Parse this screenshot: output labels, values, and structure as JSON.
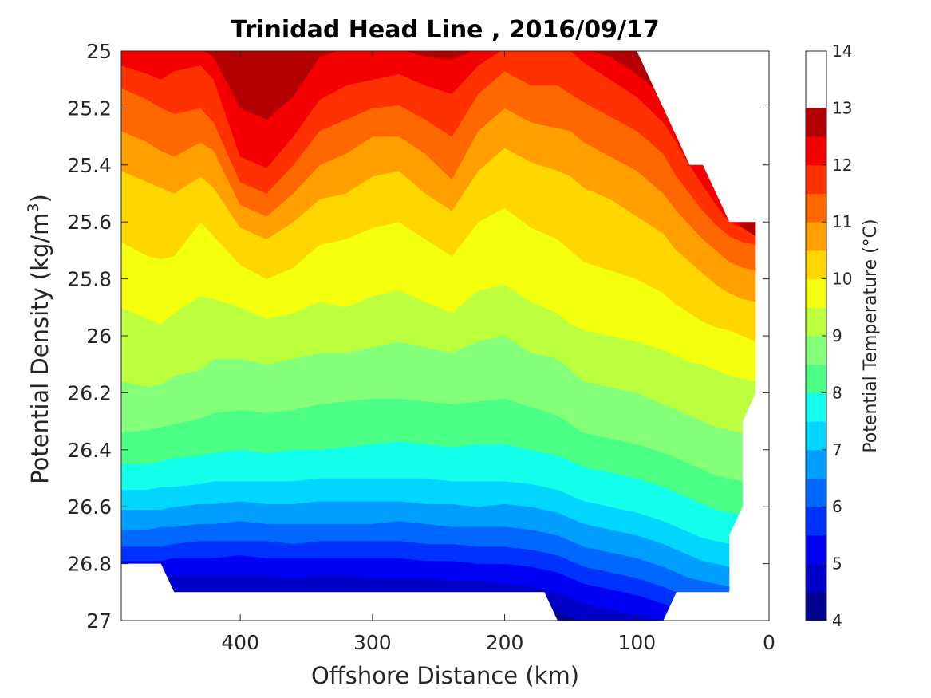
{
  "chart_data": {
    "type": "heatmap",
    "subtype": "filled-contour",
    "title": "Trinidad Head Line , 2016/09/17",
    "xlabel": "Offshore Distance (km)",
    "ylabel_main": "Potential Density (kg/m",
    "ylabel_sup": "3",
    "ylabel_close": ")",
    "colorbar_label": "Potential Temperature (°C)",
    "xlim": [
      490,
      0
    ],
    "x_reversed": true,
    "ylim": [
      25,
      27
    ],
    "y_reversed": true,
    "x_ticks": [
      400,
      300,
      200,
      100,
      0
    ],
    "y_ticks": [
      "25",
      "25.2",
      "25.4",
      "25.6",
      "25.8",
      "26",
      "26.2",
      "26.4",
      "26.6",
      "26.8",
      "27"
    ],
    "colorbar_ticks": [
      "4",
      "5",
      "6",
      "7",
      "8",
      "9",
      "10",
      "11",
      "12",
      "13",
      "14"
    ],
    "colorbar_range": [
      4,
      14
    ],
    "contour_interval": 0.5,
    "colormap": [
      "#00008f",
      "#0000c8",
      "#0000f5",
      "#0032ff",
      "#0068ff",
      "#009fff",
      "#00d6ff",
      "#12ffeb",
      "#4aff83",
      "#83ff7a",
      "#bbff3f",
      "#f3ff0c",
      "#ffd600",
      "#ffa000",
      "#ff6800",
      "#ff3100",
      "#f50000",
      "#b30000"
    ],
    "grid": false,
    "profile_x_km": [
      490,
      470,
      460,
      450,
      430,
      420,
      400,
      380,
      360,
      340,
      320,
      300,
      280,
      260,
      240,
      220,
      200,
      180,
      160,
      150,
      140,
      120,
      100,
      80,
      70,
      60,
      50,
      40,
      30,
      20,
      10
    ],
    "isotherms": [
      {
        "temp": 13.5,
        "y": [
          24.99,
          24.99,
          24.99,
          24.99,
          24.99,
          24.99,
          24.99,
          25.0,
          24.99,
          24.99,
          24.99,
          24.99,
          24.99,
          24.99,
          24.99,
          24.99,
          24.99,
          24.99,
          24.99,
          24.99,
          24.99,
          24.99,
          24.99,
          24.99,
          24.99,
          24.99,
          24.99,
          24.99,
          24.99,
          24.99,
          24.99
        ]
      },
      {
        "temp": 13.0,
        "y": [
          24.99,
          24.99,
          24.99,
          24.99,
          24.99,
          24.99,
          25.05,
          25.06,
          25.02,
          24.99,
          24.99,
          24.99,
          24.99,
          24.99,
          24.99,
          24.99,
          24.99,
          24.99,
          24.99,
          24.99,
          24.99,
          24.99,
          24.99,
          24.99,
          24.99,
          24.99,
          24.99,
          24.99,
          24.99,
          24.99,
          24.99
        ]
      },
      {
        "temp": 12.5,
        "y": [
          24.99,
          24.99,
          24.99,
          24.99,
          24.99,
          25.02,
          25.2,
          25.24,
          25.16,
          25.02,
          24.99,
          24.99,
          24.99,
          25.02,
          25.03,
          24.99,
          24.99,
          24.99,
          24.99,
          24.99,
          24.99,
          25.02,
          25.08,
          25.16,
          25.2,
          25.3,
          25.4,
          25.47,
          25.55,
          25.62,
          25.65
        ]
      },
      {
        "temp": 12.0,
        "y": [
          25.05,
          25.08,
          25.1,
          25.07,
          25.05,
          25.1,
          25.37,
          25.41,
          25.3,
          25.17,
          25.12,
          25.1,
          25.08,
          25.12,
          25.15,
          25.05,
          24.99,
          25.0,
          24.99,
          25.0,
          25.04,
          25.1,
          25.16,
          25.25,
          25.32,
          25.4,
          25.47,
          25.54,
          25.6,
          25.62,
          25.65
        ]
      },
      {
        "temp": 11.5,
        "y": [
          25.13,
          25.17,
          25.2,
          25.22,
          25.2,
          25.25,
          25.46,
          25.5,
          25.4,
          25.28,
          25.24,
          25.2,
          25.19,
          25.24,
          25.3,
          25.15,
          25.07,
          25.12,
          25.12,
          25.15,
          25.18,
          25.23,
          25.28,
          25.36,
          25.44,
          25.5,
          25.56,
          25.61,
          25.65,
          25.67,
          25.68
        ]
      },
      {
        "temp": 11.0,
        "y": [
          25.28,
          25.32,
          25.35,
          25.37,
          25.32,
          25.35,
          25.54,
          25.58,
          25.5,
          25.4,
          25.36,
          25.3,
          25.3,
          25.36,
          25.45,
          25.28,
          25.2,
          25.25,
          25.27,
          25.28,
          25.32,
          25.37,
          25.42,
          25.5,
          25.56,
          25.61,
          25.66,
          25.7,
          25.74,
          25.76,
          25.77
        ]
      },
      {
        "temp": 10.5,
        "y": [
          25.42,
          25.46,
          25.48,
          25.5,
          25.44,
          25.48,
          25.62,
          25.66,
          25.6,
          25.52,
          25.5,
          25.44,
          25.42,
          25.5,
          25.56,
          25.42,
          25.34,
          25.39,
          25.42,
          25.44,
          25.48,
          25.52,
          25.58,
          25.64,
          25.7,
          25.74,
          25.78,
          25.82,
          25.85,
          25.87,
          25.88
        ]
      },
      {
        "temp": 10.0,
        "y": [
          25.67,
          25.72,
          25.73,
          25.72,
          25.6,
          25.65,
          25.75,
          25.8,
          25.76,
          25.68,
          25.66,
          25.62,
          25.6,
          25.66,
          25.72,
          25.6,
          25.55,
          25.62,
          25.66,
          25.7,
          25.74,
          25.77,
          25.8,
          25.85,
          25.89,
          25.92,
          25.95,
          25.97,
          25.98,
          26.0,
          26.02
        ]
      },
      {
        "temp": 9.5,
        "y": [
          25.9,
          25.94,
          25.96,
          25.92,
          25.86,
          25.87,
          25.9,
          25.94,
          25.92,
          25.88,
          25.9,
          25.86,
          25.84,
          25.88,
          25.92,
          25.84,
          25.82,
          25.88,
          25.92,
          25.96,
          25.98,
          26.0,
          26.02,
          26.05,
          26.07,
          26.09,
          26.1,
          26.12,
          26.14,
          26.15,
          26.16
        ]
      },
      {
        "temp": 9.0,
        "y": [
          26.16,
          26.18,
          26.17,
          26.14,
          26.12,
          26.08,
          26.08,
          26.1,
          26.08,
          26.06,
          26.06,
          26.04,
          26.02,
          26.04,
          26.06,
          26.02,
          26.0,
          26.06,
          26.08,
          26.12,
          26.16,
          26.18,
          26.2,
          26.24,
          26.26,
          26.28,
          26.3,
          26.32,
          26.33,
          26.34,
          26.35
        ]
      },
      {
        "temp": 8.5,
        "y": [
          26.34,
          26.33,
          26.32,
          26.31,
          26.29,
          26.27,
          26.26,
          26.27,
          26.26,
          26.24,
          26.23,
          26.22,
          26.22,
          26.23,
          26.24,
          26.23,
          26.22,
          26.25,
          26.28,
          26.31,
          26.34,
          26.36,
          26.38,
          26.41,
          26.43,
          26.45,
          26.47,
          26.49,
          26.5,
          26.51,
          26.52
        ]
      },
      {
        "temp": 8.0,
        "y": [
          26.45,
          26.45,
          26.44,
          26.43,
          26.42,
          26.41,
          26.4,
          26.41,
          26.4,
          26.4,
          26.39,
          26.38,
          26.37,
          26.38,
          26.39,
          26.38,
          26.38,
          26.4,
          26.42,
          26.44,
          26.46,
          26.48,
          26.5,
          26.53,
          26.55,
          26.57,
          26.59,
          26.61,
          26.62,
          26.63,
          26.64
        ]
      },
      {
        "temp": 7.5,
        "y": [
          26.54,
          26.54,
          26.53,
          26.53,
          26.52,
          26.51,
          26.51,
          26.51,
          26.51,
          26.5,
          26.5,
          26.5,
          26.5,
          26.5,
          26.51,
          26.51,
          26.51,
          26.52,
          26.54,
          26.56,
          26.58,
          26.6,
          26.62,
          26.65,
          26.67,
          26.69,
          26.71,
          26.72,
          26.73,
          26.74,
          26.75
        ]
      },
      {
        "temp": 7.0,
        "y": [
          26.61,
          26.61,
          26.61,
          26.6,
          26.59,
          26.59,
          26.58,
          26.59,
          26.59,
          26.58,
          26.58,
          26.58,
          26.58,
          26.59,
          26.59,
          26.6,
          26.59,
          26.6,
          26.62,
          26.64,
          26.66,
          26.68,
          26.7,
          26.73,
          26.75,
          26.77,
          26.79,
          26.8,
          26.81,
          26.82,
          26.83
        ]
      },
      {
        "temp": 6.5,
        "y": [
          26.68,
          26.68,
          26.67,
          26.67,
          26.66,
          26.66,
          26.65,
          26.66,
          26.66,
          26.66,
          26.66,
          26.66,
          26.65,
          26.66,
          26.67,
          26.67,
          26.67,
          26.68,
          26.7,
          26.72,
          26.74,
          26.76,
          26.78,
          26.81,
          26.83,
          26.85,
          26.86,
          26.87,
          26.88,
          26.89,
          26.9
        ]
      },
      {
        "temp": 6.0,
        "y": [
          26.74,
          26.74,
          26.74,
          26.73,
          26.72,
          26.72,
          26.72,
          26.72,
          26.73,
          26.72,
          26.72,
          26.72,
          26.72,
          26.73,
          26.73,
          26.74,
          26.74,
          26.75,
          26.77,
          26.79,
          26.81,
          26.83,
          26.85,
          26.88,
          26.9,
          26.92,
          26.93,
          26.94,
          26.95,
          26.96,
          26.97
        ]
      },
      {
        "temp": 5.5,
        "y": [
          26.79,
          26.79,
          26.79,
          26.78,
          26.78,
          26.78,
          26.77,
          26.78,
          26.78,
          26.78,
          26.78,
          26.78,
          26.78,
          26.79,
          26.79,
          26.8,
          26.8,
          26.81,
          26.83,
          26.85,
          26.87,
          26.89,
          26.91,
          26.94,
          26.96,
          26.98,
          26.99,
          27.0,
          27.0,
          27.0,
          27.0
        ]
      },
      {
        "temp": 5.0,
        "y": [
          26.85,
          26.85,
          26.85,
          26.84,
          26.84,
          26.84,
          26.84,
          26.84,
          26.85,
          26.84,
          26.84,
          26.85,
          26.85,
          26.85,
          26.86,
          26.86,
          26.87,
          26.88,
          26.9,
          26.92,
          26.94,
          26.96,
          26.98,
          27.0,
          27.0,
          27.0,
          27.0,
          27.0,
          27.0,
          27.0,
          27.0
        ]
      },
      {
        "temp": 4.5,
        "y": [
          26.92,
          26.92,
          26.92,
          26.92,
          26.92,
          26.92,
          26.92,
          26.92,
          26.92,
          26.92,
          26.92,
          26.92,
          26.92,
          26.93,
          26.93,
          26.94,
          26.94,
          26.95,
          26.97,
          26.99,
          27.0,
          27.0,
          27.0,
          27.0,
          27.0,
          27.0,
          27.0,
          27.0,
          27.0,
          27.0,
          27.0
        ]
      }
    ],
    "no_data_regions": [
      {
        "label": "deep-gap",
        "polygon": [
          [
            490,
            26.8
          ],
          [
            460,
            26.8
          ],
          [
            450,
            26.9
          ],
          [
            170,
            26.9
          ],
          [
            160,
            27.0
          ],
          [
            80,
            27.0
          ],
          [
            70,
            26.9
          ],
          [
            30,
            26.9
          ],
          [
            30,
            26.7
          ],
          [
            20,
            26.6
          ],
          [
            20,
            26.3
          ],
          [
            10,
            26.2
          ],
          [
            10,
            25.6
          ],
          [
            30,
            25.6
          ],
          [
            40,
            25.5
          ],
          [
            50,
            25.4
          ],
          [
            60,
            25.4
          ],
          [
            100,
            25.0
          ],
          [
            0,
            25.0
          ],
          [
            0,
            27.0
          ],
          [
            490,
            27.0
          ]
        ]
      }
    ]
  }
}
